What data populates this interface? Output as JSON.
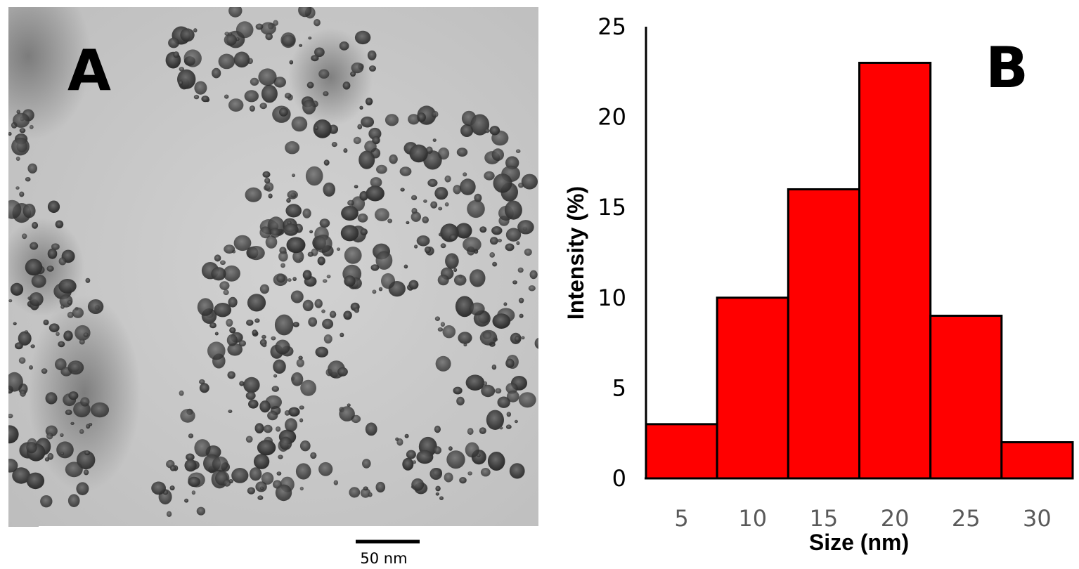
{
  "panel_a": {
    "label": "A",
    "scale_bar_label": "50 nm"
  },
  "panel_b": {
    "label": "B"
  },
  "colors": {
    "bar_fill": "#ff0000",
    "bar_stroke": "#000000",
    "axis": "#000000",
    "tick_text": "#595959",
    "micrograph_background": "#c8c8c8",
    "particle": "#3a3a3a"
  },
  "chart_data": {
    "type": "bar",
    "title": "",
    "xlabel": "Size (nm)",
    "ylabel": "Intensity (%)",
    "categories": [
      "5",
      "10",
      "15",
      "20",
      "25",
      "30"
    ],
    "values": [
      3,
      10,
      16,
      23,
      9,
      2
    ],
    "ylim": [
      0,
      25
    ],
    "yticks": [
      "0",
      "5",
      "10",
      "15",
      "20",
      "25"
    ],
    "grid": false,
    "legend": "none"
  }
}
